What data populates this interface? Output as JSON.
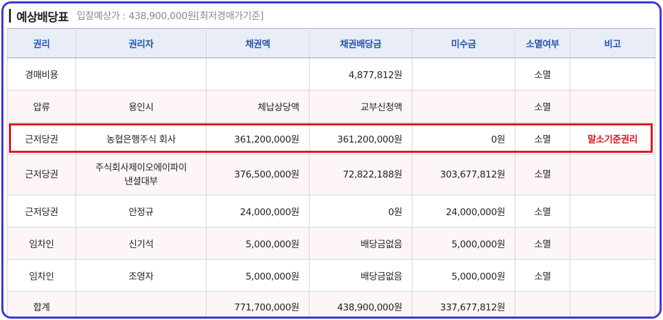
{
  "title": "예상배당표",
  "subtitle": "입찰예상가 : 438,900,000원[최저경매가기준]",
  "columns": [
    "권리",
    "권리자",
    "채권액",
    "채권배당금",
    "미수금",
    "소멸여부",
    "비고"
  ],
  "rows": [
    {
      "right": "경매비용",
      "holder": "",
      "claim": "",
      "dividend": "4,877,812원",
      "unpaid": "",
      "extinct": "소멸",
      "note": ""
    },
    {
      "right": "압류",
      "holder": "용인시",
      "claim": "체납상당액",
      "dividend": "교부신청액",
      "unpaid": "",
      "extinct": "소멸",
      "note": ""
    },
    {
      "right": "근저당권",
      "holder": "농협은행주식 회사",
      "claim": "361,200,000원",
      "dividend": "361,200,000원",
      "unpaid": "0원",
      "extinct": "소멸",
      "note": "말소기준권리"
    },
    {
      "right": "근저당권",
      "holder_line1": "주식회사제이오에이파이",
      "holder_line2": "낸셜대부",
      "claim": "376,500,000원",
      "dividend": "72,822,188원",
      "unpaid": "303,677,812원",
      "extinct": "소멸",
      "note": ""
    },
    {
      "right": "근저당권",
      "holder": "안정규",
      "claim": "24,000,000원",
      "dividend": "0원",
      "unpaid": "24,000,000원",
      "extinct": "소멸",
      "note": ""
    },
    {
      "right": "임차인",
      "holder": "신기석",
      "claim": "5,000,000원",
      "dividend": "배당금없음",
      "unpaid": "5,000,000원",
      "extinct": "소멸",
      "note": ""
    },
    {
      "right": "임차인",
      "holder": "조영자",
      "claim": "5,000,000원",
      "dividend": "배당금없음",
      "unpaid": "5,000,000원",
      "extinct": "소멸",
      "note": ""
    }
  ],
  "total": {
    "label": "합계",
    "claim": "771,700,000원",
    "dividend": "438,900,000원",
    "unpaid": "337,677,812원"
  },
  "colors": {
    "frame": "#3a35d8",
    "header_text": "#2553a8",
    "highlight": "#e1161e",
    "note": "#e0101a"
  }
}
